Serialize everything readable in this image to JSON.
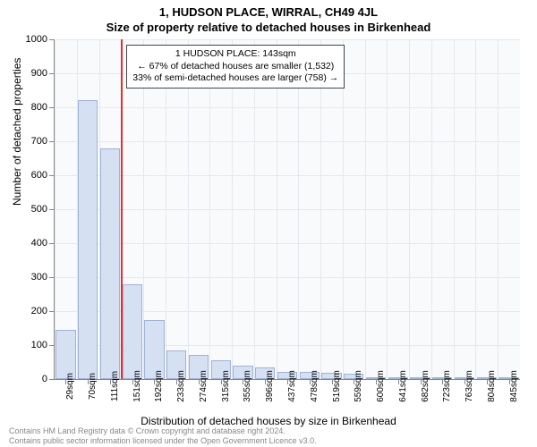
{
  "header": {
    "address": "1, HUDSON PLACE, WIRRAL, CH49 4JL",
    "subtitle": "Size of property relative to detached houses in Birkenhead"
  },
  "chart": {
    "type": "histogram",
    "background_color": "#f9fafc",
    "grid_color": "#e5e8ee",
    "bar_fill_color": "#d5e0f2",
    "bar_border_color": "#9fb3d8",
    "marker_color": "#e03030",
    "ylim": [
      0,
      1000
    ],
    "ytick_step": 100,
    "y_axis_label": "Number of detached properties",
    "x_axis_label": "Distribution of detached houses by size in Birkenhead",
    "x_categories": [
      "29sqm",
      "70sqm",
      "111sqm",
      "151sqm",
      "192sqm",
      "233sqm",
      "274sqm",
      "315sqm",
      "355sqm",
      "396sqm",
      "437sqm",
      "478sqm",
      "519sqm",
      "559sqm",
      "600sqm",
      "641sqm",
      "682sqm",
      "723sqm",
      "763sqm",
      "804sqm",
      "845sqm"
    ],
    "values": [
      145,
      820,
      680,
      280,
      175,
      85,
      70,
      55,
      40,
      35,
      22,
      20,
      18,
      15,
      5,
      4,
      3,
      2,
      1,
      1,
      1
    ],
    "marker_after_index": 2,
    "annotation": {
      "line1": "1 HUDSON PLACE: 143sqm",
      "line2": "← 67% of detached houses are smaller (1,532)",
      "line3": "33% of semi-detached houses are larger (758) →"
    }
  },
  "footer": {
    "line1": "Contains HM Land Registry data © Crown copyright and database right 2024.",
    "line2": "Contains public sector information licensed under the Open Government Licence v3.0."
  }
}
